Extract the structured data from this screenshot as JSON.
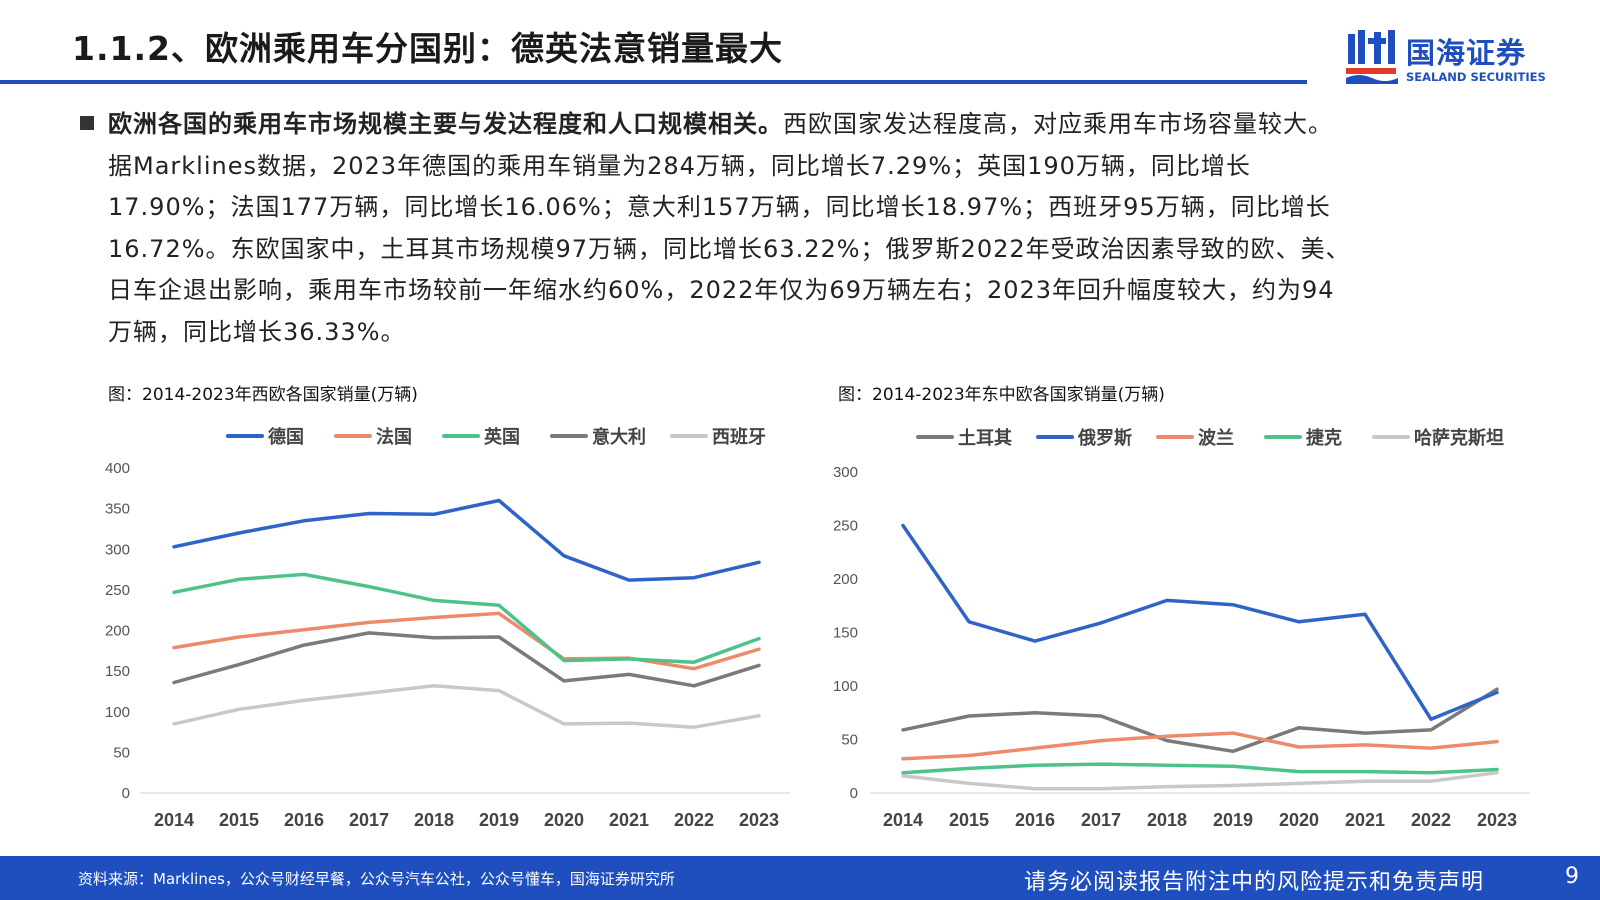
{
  "header": {
    "title": "1.1.2、欧洲乘用车分国别：德英法意销量最大",
    "logo_cn": "国海证券",
    "logo_en": "SEALAND SECURITIES"
  },
  "body": {
    "lead": "欧洲各国的乘用车市场规模主要与发达程度和人口规模相关。",
    "line1_rest": "西欧国家发达程度高，对应乘用车市场容量较大。",
    "lines": [
      "据Marklines数据，2023年德国的乘用车销量为284万辆，同比增长7.29%；英国190万辆，同比增长",
      "17.90%；法国177万辆，同比增长16.06%；意大利157万辆，同比增长18.97%；西班牙95万辆，同比增长",
      "16.72%。东欧国家中，土耳其市场规模97万辆，同比增长63.22%；俄罗斯2022年受政治因素导致的欧、美、",
      "日车企退出影响，乘用车市场较前一年缩水约60%，2022年仅为69万辆左右；2023年回升幅度较大，约为94",
      "万辆，同比增长36.33%。"
    ]
  },
  "chart_data": [
    {
      "type": "line",
      "title": "图：2014-2023年西欧各国家销量(万辆)",
      "categories": [
        "2014",
        "2015",
        "2016",
        "2017",
        "2018",
        "2019",
        "2020",
        "2021",
        "2022",
        "2023"
      ],
      "ylim": [
        0,
        400
      ],
      "yticks": [
        0,
        50,
        100,
        150,
        200,
        250,
        300,
        350,
        400
      ],
      "legend_position": "top",
      "grid": false,
      "series": [
        {
          "name": "德国",
          "color": "#2e64c8",
          "values": [
            303,
            320,
            335,
            344,
            343,
            360,
            292,
            262,
            265,
            284
          ]
        },
        {
          "name": "法国",
          "color": "#ee8a6c",
          "values": [
            179,
            192,
            201,
            210,
            216,
            221,
            165,
            166,
            153,
            177
          ]
        },
        {
          "name": "英国",
          "color": "#4fc28a",
          "values": [
            247,
            263,
            269,
            254,
            237,
            231,
            163,
            165,
            161,
            190
          ]
        },
        {
          "name": "意大利",
          "color": "#7a7a7a",
          "values": [
            136,
            158,
            182,
            197,
            191,
            192,
            138,
            146,
            132,
            157
          ]
        },
        {
          "name": "西班牙",
          "color": "#c8c8c8",
          "values": [
            85,
            103,
            114,
            123,
            132,
            126,
            85,
            86,
            81,
            95
          ]
        }
      ]
    },
    {
      "type": "line",
      "title": "图：2014-2023年东中欧各国家销量(万辆)",
      "categories": [
        "2014",
        "2015",
        "2016",
        "2017",
        "2018",
        "2019",
        "2020",
        "2021",
        "2022",
        "2023"
      ],
      "ylim": [
        0,
        300
      ],
      "yticks": [
        0,
        50,
        100,
        150,
        200,
        250,
        300
      ],
      "legend_position": "top",
      "grid": false,
      "series": [
        {
          "name": "土耳其",
          "color": "#7a7a7a",
          "values": [
            59,
            72,
            75,
            72,
            49,
            39,
            61,
            56,
            59,
            97
          ]
        },
        {
          "name": "俄罗斯",
          "color": "#2e64c8",
          "values": [
            250,
            160,
            142,
            159,
            180,
            176,
            160,
            167,
            69,
            94
          ]
        },
        {
          "name": "波兰",
          "color": "#ee8a6c",
          "values": [
            32,
            35,
            42,
            49,
            53,
            56,
            43,
            45,
            42,
            48
          ]
        },
        {
          "name": "捷克",
          "color": "#4fc28a",
          "values": [
            19,
            23,
            26,
            27,
            26,
            25,
            20,
            20,
            19,
            22
          ]
        },
        {
          "name": "哈萨克斯坦",
          "color": "#c8c8c8",
          "values": [
            16,
            9,
            4,
            4,
            6,
            7,
            9,
            11,
            11,
            19
          ]
        }
      ]
    }
  ],
  "footer": {
    "source": "资料来源：Marklines，公众号财经早餐，公众号汽车公社，公众号懂车，国海证券研究所",
    "disclaimer": "请务必阅读报告附注中的风险提示和免责声明",
    "page": "9"
  },
  "colors": {
    "brand": "#1f4fbf"
  }
}
